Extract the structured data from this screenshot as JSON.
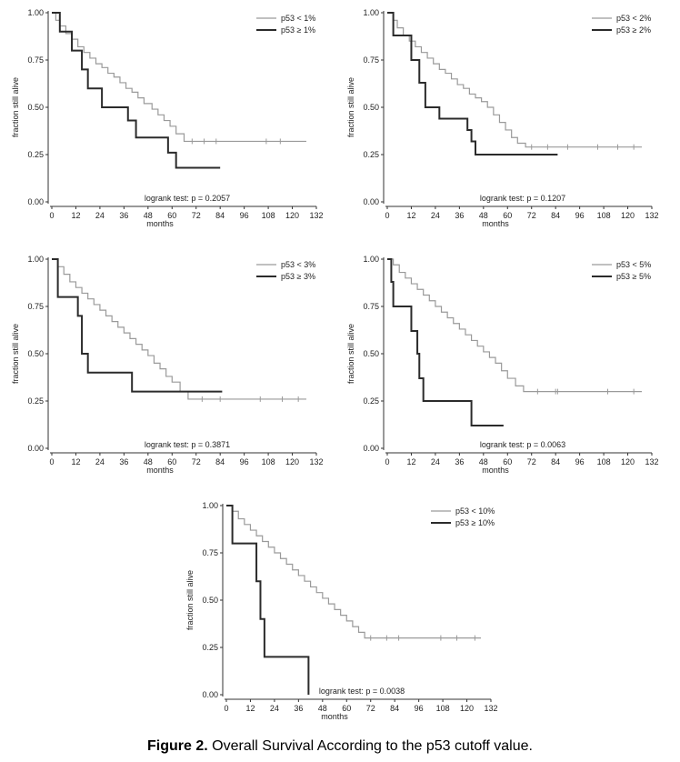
{
  "caption": {
    "label": "Figure 2.",
    "text": " Overall Survival According to the p53 cutoff value."
  },
  "chart_data": [
    {
      "type": "line",
      "xlabel": "months",
      "ylabel": "fraction still alive",
      "xticks": [
        0,
        12,
        24,
        36,
        48,
        60,
        72,
        84,
        96,
        108,
        120,
        132
      ],
      "yticks": [
        "0.00",
        "0.25",
        "0.50",
        "0.75",
        "1.00"
      ],
      "xlim": [
        0,
        132
      ],
      "ylim": [
        0,
        1
      ],
      "legend_position": "top-right",
      "annotation": "logrank test: p = 0.2057",
      "series": [
        {
          "name": "p53 < 1%",
          "style": "light",
          "steps": [
            [
              0,
              1
            ],
            [
              2,
              0.96
            ],
            [
              4,
              0.93
            ],
            [
              7,
              0.89
            ],
            [
              10,
              0.86
            ],
            [
              13,
              0.82
            ],
            [
              16,
              0.79
            ],
            [
              19,
              0.76
            ],
            [
              22,
              0.73
            ],
            [
              25,
              0.71
            ],
            [
              28,
              0.68
            ],
            [
              31,
              0.66
            ],
            [
              34,
              0.63
            ],
            [
              37,
              0.6
            ],
            [
              40,
              0.58
            ],
            [
              43,
              0.55
            ],
            [
              46,
              0.52
            ],
            [
              50,
              0.49
            ],
            [
              53,
              0.46
            ],
            [
              56,
              0.43
            ],
            [
              59,
              0.4
            ],
            [
              62,
              0.36
            ],
            [
              66,
              0.32
            ],
            [
              127,
              0.32
            ]
          ],
          "censors": [
            [
              70,
              0.32
            ],
            [
              76,
              0.32
            ],
            [
              82,
              0.32
            ],
            [
              107,
              0.32
            ],
            [
              114,
              0.32
            ]
          ]
        },
        {
          "name": "p53 ≥ 1%",
          "style": "dark",
          "steps": [
            [
              0,
              1
            ],
            [
              4,
              0.9
            ],
            [
              10,
              0.8
            ],
            [
              15,
              0.7
            ],
            [
              18,
              0.6
            ],
            [
              25,
              0.5
            ],
            [
              38,
              0.43
            ],
            [
              42,
              0.34
            ],
            [
              58,
              0.26
            ],
            [
              62,
              0.18
            ],
            [
              84,
              0.18
            ]
          ],
          "censors": []
        }
      ]
    },
    {
      "type": "line",
      "xlabel": "months",
      "ylabel": "fraction still alive",
      "xticks": [
        0,
        12,
        24,
        36,
        48,
        60,
        72,
        84,
        96,
        108,
        120,
        132
      ],
      "yticks": [
        "0.00",
        "0.25",
        "0.50",
        "0.75",
        "1.00"
      ],
      "xlim": [
        0,
        132
      ],
      "ylim": [
        0,
        1
      ],
      "legend_position": "top-right",
      "annotation": "logrank test: p = 0.1207",
      "series": [
        {
          "name": "p53 < 2%",
          "style": "light",
          "steps": [
            [
              0,
              1
            ],
            [
              3,
              0.96
            ],
            [
              5,
              0.92
            ],
            [
              8,
              0.88
            ],
            [
              11,
              0.85
            ],
            [
              14,
              0.82
            ],
            [
              17,
              0.79
            ],
            [
              20,
              0.76
            ],
            [
              23,
              0.73
            ],
            [
              26,
              0.7
            ],
            [
              29,
              0.68
            ],
            [
              32,
              0.65
            ],
            [
              35,
              0.62
            ],
            [
              38,
              0.6
            ],
            [
              41,
              0.57
            ],
            [
              44,
              0.55
            ],
            [
              47,
              0.53
            ],
            [
              50,
              0.5
            ],
            [
              53,
              0.46
            ],
            [
              56,
              0.42
            ],
            [
              59,
              0.38
            ],
            [
              62,
              0.34
            ],
            [
              65,
              0.31
            ],
            [
              69,
              0.29
            ],
            [
              127,
              0.29
            ]
          ],
          "censors": [
            [
              72,
              0.29
            ],
            [
              80,
              0.29
            ],
            [
              90,
              0.29
            ],
            [
              105,
              0.29
            ],
            [
              115,
              0.29
            ],
            [
              123,
              0.29
            ]
          ]
        },
        {
          "name": "p53 ≥ 2%",
          "style": "dark",
          "steps": [
            [
              0,
              1
            ],
            [
              3,
              0.88
            ],
            [
              12,
              0.75
            ],
            [
              16,
              0.63
            ],
            [
              19,
              0.5
            ],
            [
              26,
              0.44
            ],
            [
              40,
              0.38
            ],
            [
              42,
              0.32
            ],
            [
              44,
              0.25
            ],
            [
              85,
              0.25
            ]
          ],
          "censors": []
        }
      ]
    },
    {
      "type": "line",
      "xlabel": "months",
      "ylabel": "fraction still alive",
      "xticks": [
        0,
        12,
        24,
        36,
        48,
        60,
        72,
        84,
        96,
        108,
        120,
        132
      ],
      "yticks": [
        "0.00",
        "0.25",
        "0.50",
        "0.75",
        "1.00"
      ],
      "xlim": [
        0,
        132
      ],
      "ylim": [
        0,
        1
      ],
      "legend_position": "top-right",
      "annotation": "logrank test: p = 0.3871",
      "series": [
        {
          "name": "p53 < 3%",
          "style": "light",
          "steps": [
            [
              0,
              1
            ],
            [
              3,
              0.96
            ],
            [
              6,
              0.92
            ],
            [
              9,
              0.88
            ],
            [
              12,
              0.85
            ],
            [
              15,
              0.82
            ],
            [
              18,
              0.79
            ],
            [
              21,
              0.76
            ],
            [
              24,
              0.73
            ],
            [
              27,
              0.7
            ],
            [
              30,
              0.67
            ],
            [
              33,
              0.64
            ],
            [
              36,
              0.61
            ],
            [
              39,
              0.58
            ],
            [
              42,
              0.55
            ],
            [
              45,
              0.52
            ],
            [
              48,
              0.49
            ],
            [
              51,
              0.45
            ],
            [
              54,
              0.42
            ],
            [
              57,
              0.38
            ],
            [
              60,
              0.35
            ],
            [
              64,
              0.3
            ],
            [
              68,
              0.26
            ],
            [
              127,
              0.26
            ]
          ],
          "censors": [
            [
              75,
              0.26
            ],
            [
              84,
              0.26
            ],
            [
              104,
              0.26
            ],
            [
              115,
              0.26
            ],
            [
              123,
              0.26
            ]
          ]
        },
        {
          "name": "p53 ≥ 3%",
          "style": "dark",
          "steps": [
            [
              0,
              1
            ],
            [
              3,
              0.8
            ],
            [
              13,
              0.7
            ],
            [
              15,
              0.5
            ],
            [
              18,
              0.4
            ],
            [
              40,
              0.3
            ],
            [
              85,
              0.3
            ]
          ],
          "censors": []
        }
      ]
    },
    {
      "type": "line",
      "xlabel": "months",
      "ylabel": "fraction still alive",
      "xticks": [
        0,
        12,
        24,
        36,
        48,
        60,
        72,
        84,
        96,
        108,
        120,
        132
      ],
      "yticks": [
        "0.00",
        "0.25",
        "0.50",
        "0.75",
        "1.00"
      ],
      "xlim": [
        0,
        132
      ],
      "ylim": [
        0,
        1
      ],
      "legend_position": "top-right",
      "annotation": "logrank test: p = 0.0063",
      "series": [
        {
          "name": "p53 < 5%",
          "style": "light",
          "steps": [
            [
              0,
              1
            ],
            [
              3,
              0.97
            ],
            [
              6,
              0.93
            ],
            [
              9,
              0.9
            ],
            [
              12,
              0.87
            ],
            [
              15,
              0.84
            ],
            [
              18,
              0.81
            ],
            [
              21,
              0.78
            ],
            [
              24,
              0.75
            ],
            [
              27,
              0.72
            ],
            [
              30,
              0.69
            ],
            [
              33,
              0.66
            ],
            [
              36,
              0.63
            ],
            [
              39,
              0.6
            ],
            [
              42,
              0.57
            ],
            [
              45,
              0.54
            ],
            [
              48,
              0.51
            ],
            [
              51,
              0.48
            ],
            [
              54,
              0.45
            ],
            [
              57,
              0.41
            ],
            [
              60,
              0.37
            ],
            [
              64,
              0.33
            ],
            [
              68,
              0.3
            ],
            [
              127,
              0.3
            ]
          ],
          "censors": [
            [
              75,
              0.3
            ],
            [
              84,
              0.3
            ],
            [
              85,
              0.3
            ],
            [
              110,
              0.3
            ],
            [
              123,
              0.3
            ]
          ]
        },
        {
          "name": "p53 ≥ 5%",
          "style": "dark",
          "steps": [
            [
              0,
              1
            ],
            [
              2,
              0.88
            ],
            [
              3,
              0.75
            ],
            [
              12,
              0.62
            ],
            [
              15,
              0.5
            ],
            [
              16,
              0.37
            ],
            [
              18,
              0.25
            ],
            [
              42,
              0.12
            ],
            [
              58,
              0.12
            ]
          ],
          "censors": []
        }
      ]
    },
    {
      "type": "line",
      "xlabel": "months",
      "ylabel": "fraction still alive",
      "xticks": [
        0,
        12,
        24,
        36,
        48,
        60,
        72,
        84,
        96,
        108,
        120,
        132
      ],
      "yticks": [
        "0.00",
        "0.25",
        "0.50",
        "0.75",
        "1.00"
      ],
      "xlim": [
        0,
        132
      ],
      "ylim": [
        0,
        1
      ],
      "legend_position": "top-right",
      "annotation": "logrank test: p = 0.0038",
      "series": [
        {
          "name": "p53 < 10%",
          "style": "light",
          "steps": [
            [
              0,
              1
            ],
            [
              3,
              0.97
            ],
            [
              6,
              0.93
            ],
            [
              9,
              0.9
            ],
            [
              12,
              0.87
            ],
            [
              15,
              0.84
            ],
            [
              18,
              0.81
            ],
            [
              21,
              0.78
            ],
            [
              24,
              0.75
            ],
            [
              27,
              0.72
            ],
            [
              30,
              0.69
            ],
            [
              33,
              0.66
            ],
            [
              36,
              0.63
            ],
            [
              39,
              0.6
            ],
            [
              42,
              0.57
            ],
            [
              45,
              0.54
            ],
            [
              48,
              0.51
            ],
            [
              51,
              0.48
            ],
            [
              54,
              0.45
            ],
            [
              57,
              0.42
            ],
            [
              60,
              0.39
            ],
            [
              63,
              0.36
            ],
            [
              66,
              0.33
            ],
            [
              69,
              0.3
            ],
            [
              127,
              0.3
            ]
          ],
          "censors": [
            [
              72,
              0.3
            ],
            [
              80,
              0.3
            ],
            [
              86,
              0.3
            ],
            [
              107,
              0.3
            ],
            [
              115,
              0.3
            ],
            [
              124,
              0.3
            ]
          ]
        },
        {
          "name": "p53 ≥ 10%",
          "style": "dark",
          "steps": [
            [
              0,
              1
            ],
            [
              3,
              0.8
            ],
            [
              15,
              0.6
            ],
            [
              17,
              0.4
            ],
            [
              19,
              0.2
            ],
            [
              41,
              0.0
            ]
          ],
          "censors": []
        }
      ]
    }
  ]
}
